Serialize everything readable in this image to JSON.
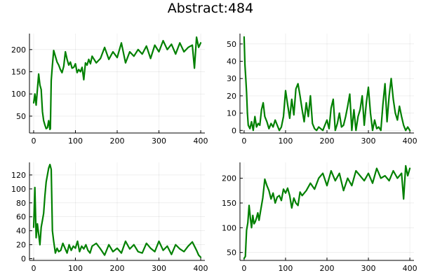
{
  "figure": {
    "title": "Abstract:484",
    "series_color": "#008000"
  },
  "chart_data": [
    {
      "type": "line",
      "title": "",
      "xlabel": "",
      "ylabel": "",
      "xlim": [
        -10,
        410
      ],
      "ylim": [
        12,
        236
      ],
      "xticks": [
        0,
        100,
        200,
        300,
        400
      ],
      "yticks": [
        50,
        100,
        150,
        200
      ],
      "grid": true,
      "legend": "none",
      "series": [
        {
          "x": [
            0,
            3,
            6,
            9,
            12,
            15,
            18,
            21,
            24,
            27,
            30,
            33,
            36,
            39,
            40,
            42,
            45,
            48,
            52,
            56,
            60,
            64,
            68,
            72,
            76,
            80,
            84,
            88,
            92,
            96,
            100,
            104,
            108,
            112,
            116,
            120,
            124,
            128,
            132,
            136,
            140,
            150,
            160,
            170,
            180,
            190,
            200,
            210,
            220,
            230,
            240,
            250,
            260,
            270,
            280,
            290,
            300,
            310,
            320,
            330,
            340,
            350,
            360,
            370,
            380,
            385,
            390,
            395,
            400
          ],
          "y": [
            80,
            100,
            75,
            110,
            145,
            120,
            110,
            60,
            40,
            30,
            22,
            24,
            40,
            20,
            22,
            130,
            165,
            198,
            185,
            172,
            165,
            155,
            148,
            162,
            195,
            178,
            165,
            172,
            158,
            160,
            168,
            148,
            155,
            150,
            160,
            132,
            170,
            165,
            178,
            168,
            185,
            170,
            180,
            205,
            178,
            195,
            182,
            215,
            170,
            195,
            185,
            200,
            190,
            208,
            180,
            210,
            195,
            220,
            200,
            212,
            190,
            215,
            195,
            205,
            210,
            158,
            228,
            205,
            215
          ]
        }
      ]
    },
    {
      "type": "line",
      "title": "",
      "xlabel": "",
      "ylabel": "",
      "xlim": [
        -10,
        410
      ],
      "ylim": [
        -1.5,
        56
      ],
      "xticks": [
        0,
        100,
        200,
        300,
        400
      ],
      "yticks": [
        0,
        10,
        20,
        30,
        40,
        50
      ],
      "grid": true,
      "legend": "none",
      "series": [
        {
          "x": [
            0,
            2,
            4,
            6,
            8,
            10,
            14,
            18,
            22,
            26,
            30,
            34,
            38,
            42,
            46,
            50,
            55,
            60,
            65,
            70,
            75,
            80,
            85,
            90,
            95,
            100,
            105,
            110,
            115,
            120,
            125,
            130,
            135,
            140,
            145,
            150,
            155,
            160,
            165,
            170,
            175,
            180,
            185,
            190,
            195,
            200,
            205,
            210,
            215,
            220,
            225,
            230,
            235,
            240,
            245,
            250,
            255,
            260,
            265,
            270,
            275,
            280,
            285,
            290,
            295,
            300,
            305,
            310,
            315,
            320,
            325,
            330,
            335,
            340,
            345,
            350,
            355,
            360,
            365,
            370,
            375,
            380,
            385,
            390,
            395,
            400
          ],
          "y": [
            54,
            38,
            30,
            22,
            10,
            3,
            1,
            5,
            0,
            8,
            2,
            4,
            3,
            12,
            16,
            8,
            5,
            1,
            4,
            2,
            6,
            3,
            0,
            2,
            8,
            23,
            15,
            7,
            18,
            9,
            24,
            27,
            20,
            12,
            5,
            16,
            8,
            20,
            4,
            1,
            0,
            2,
            1,
            0,
            3,
            6,
            1,
            13,
            18,
            0,
            4,
            10,
            2,
            3,
            8,
            14,
            21,
            0,
            12,
            0,
            8,
            12,
            20,
            3,
            16,
            25,
            10,
            0,
            6,
            1,
            2,
            0,
            15,
            27,
            5,
            20,
            30,
            18,
            10,
            6,
            14,
            8,
            3,
            0,
            2,
            0
          ]
        }
      ]
    },
    {
      "type": "line",
      "title": "",
      "xlabel": "",
      "ylabel": "",
      "xlim": [
        -10,
        410
      ],
      "ylim": [
        -2.5,
        138
      ],
      "xticks": [
        0,
        100,
        200,
        300,
        400
      ],
      "yticks": [
        0,
        20,
        40,
        60,
        80,
        100,
        120
      ],
      "grid": true,
      "legend": "none",
      "series": [
        {
          "x": [
            0,
            3,
            6,
            9,
            12,
            15,
            18,
            21,
            24,
            27,
            30,
            33,
            36,
            39,
            42,
            45,
            48,
            52,
            56,
            60,
            65,
            70,
            75,
            80,
            85,
            90,
            95,
            100,
            105,
            110,
            115,
            120,
            125,
            130,
            135,
            140,
            150,
            160,
            170,
            180,
            190,
            200,
            210,
            220,
            230,
            240,
            250,
            260,
            270,
            280,
            290,
            300,
            310,
            320,
            330,
            340,
            350,
            360,
            370,
            380,
            390,
            395,
            400
          ],
          "y": [
            45,
            102,
            30,
            50,
            35,
            20,
            45,
            55,
            65,
            90,
            110,
            120,
            130,
            135,
            128,
            40,
            25,
            8,
            15,
            10,
            12,
            22,
            15,
            8,
            20,
            12,
            18,
            15,
            25,
            10,
            18,
            14,
            20,
            12,
            8,
            18,
            22,
            14,
            5,
            20,
            10,
            15,
            8,
            25,
            14,
            20,
            10,
            8,
            22,
            15,
            10,
            25,
            12,
            18,
            6,
            20,
            14,
            10,
            18,
            24,
            12,
            5,
            2
          ]
        }
      ]
    },
    {
      "type": "line",
      "title": "",
      "xlabel": "",
      "ylabel": "",
      "xlim": [
        -10,
        410
      ],
      "ylim": [
        34,
        232
      ],
      "xticks": [
        0,
        100,
        200,
        300,
        400
      ],
      "yticks": [
        50,
        100,
        150,
        200
      ],
      "grid": true,
      "legend": "none",
      "series": [
        {
          "x": [
            0,
            3,
            6,
            9,
            12,
            15,
            18,
            21,
            24,
            27,
            30,
            33,
            36,
            40,
            45,
            50,
            55,
            60,
            65,
            70,
            75,
            80,
            85,
            90,
            95,
            100,
            105,
            110,
            115,
            120,
            125,
            130,
            135,
            140,
            150,
            160,
            170,
            180,
            190,
            200,
            210,
            220,
            230,
            240,
            250,
            260,
            270,
            280,
            290,
            300,
            310,
            320,
            330,
            340,
            350,
            360,
            370,
            380,
            385,
            390,
            395,
            400
          ],
          "y": [
            38,
            42,
            95,
            110,
            145,
            120,
            100,
            125,
            108,
            112,
            120,
            130,
            115,
            135,
            160,
            198,
            185,
            175,
            158,
            170,
            150,
            162,
            165,
            155,
            178,
            170,
            180,
            165,
            140,
            160,
            150,
            145,
            172,
            165,
            175,
            190,
            178,
            200,
            210,
            185,
            215,
            195,
            210,
            175,
            200,
            185,
            215,
            205,
            195,
            210,
            190,
            220,
            200,
            205,
            195,
            215,
            200,
            210,
            158,
            225,
            205,
            220
          ]
        }
      ]
    }
  ]
}
